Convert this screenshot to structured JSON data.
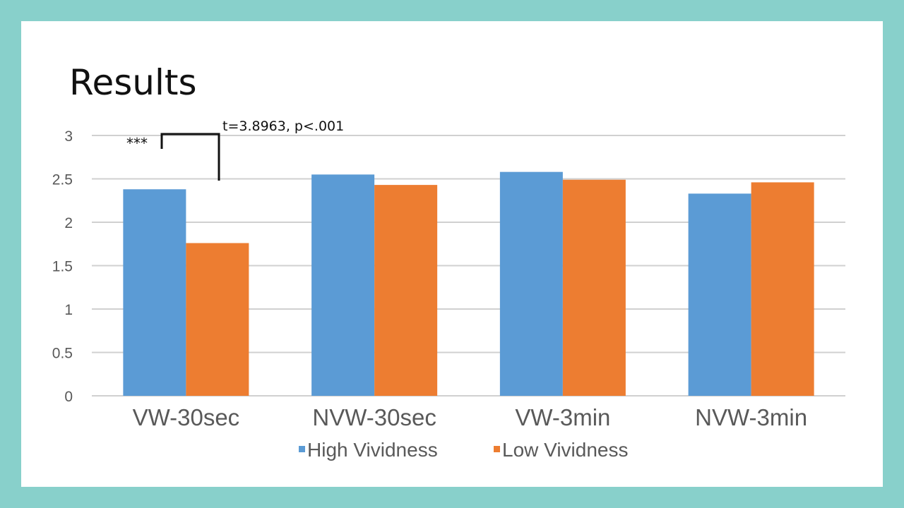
{
  "slide": {
    "title": "Results",
    "colors": {
      "background": "#88d0cb",
      "panel": "#ffffff"
    }
  },
  "chart_data": {
    "type": "bar",
    "title": "",
    "xlabel": "",
    "ylabel": "",
    "categories": [
      "VW-30sec",
      "NVW-30sec",
      "VW-3min",
      "NVW-3min"
    ],
    "series": [
      {
        "name": "High Vividness",
        "color": "#5b9bd5",
        "values": [
          2.38,
          2.55,
          2.58,
          2.33
        ]
      },
      {
        "name": "Low Vividness",
        "color": "#ed7d31",
        "values": [
          1.76,
          2.43,
          2.49,
          2.46
        ]
      }
    ],
    "ylim": [
      0,
      3
    ],
    "yticks": [
      "0",
      "0.5",
      "1",
      "1.5",
      "2",
      "2.5",
      "3"
    ],
    "grid": true,
    "legend_position": "bottom",
    "annotations": {
      "stars": "***",
      "test": "t=3.8963, p<.001"
    }
  }
}
